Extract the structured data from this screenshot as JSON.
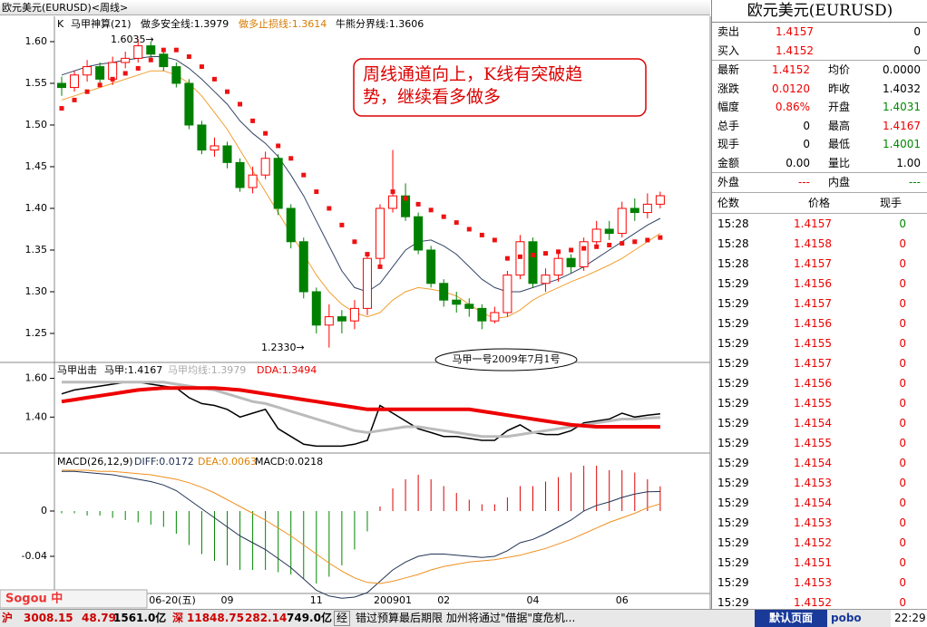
{
  "title_bar": "欧元美元(EURUSD)<周线>",
  "chart_data": [
    {
      "type": "candlestick",
      "label": "K",
      "indicator": "马甲神算(21)",
      "header": [
        "做多安全线:1.3979",
        "做多止损线:1.3614",
        "牛熊分界线:1.3606"
      ],
      "ylim": [
        1.2152,
        1.6304
      ],
      "yticks": [
        {
          "value": 1.25,
          "label": "1.25"
        },
        {
          "value": 1.3,
          "label": "1.30"
        },
        {
          "value": 1.35,
          "label": "1.35"
        },
        {
          "value": 1.4,
          "label": "1.40"
        },
        {
          "value": 1.45,
          "label": "1.45"
        },
        {
          "value": 1.5,
          "label": "1.50"
        },
        {
          "value": 1.55,
          "label": "1.55"
        },
        {
          "value": 1.6,
          "label": "1.60"
        }
      ],
      "open": [
        1.55,
        1.545,
        1.56,
        1.57,
        1.555,
        1.575,
        1.58,
        1.595,
        1.585,
        1.57,
        1.55,
        1.5,
        1.47,
        1.475,
        1.455,
        1.425,
        1.44,
        1.46,
        1.4,
        1.36,
        1.3,
        1.26,
        1.27,
        1.265,
        1.28,
        1.34,
        1.4,
        1.415,
        1.39,
        1.35,
        1.31,
        1.29,
        1.285,
        1.28,
        1.265,
        1.275,
        1.32,
        1.36,
        1.31,
        1.32,
        1.34,
        1.33,
        1.36,
        1.375,
        1.37,
        1.4,
        1.395,
        1.405
      ],
      "close": [
        1.545,
        1.56,
        1.57,
        1.555,
        1.575,
        1.58,
        1.595,
        1.585,
        1.57,
        1.55,
        1.5,
        1.47,
        1.475,
        1.455,
        1.425,
        1.44,
        1.46,
        1.4,
        1.36,
        1.3,
        1.26,
        1.27,
        1.265,
        1.28,
        1.34,
        1.4,
        1.415,
        1.39,
        1.35,
        1.31,
        1.29,
        1.285,
        1.28,
        1.265,
        1.275,
        1.32,
        1.36,
        1.31,
        1.32,
        1.34,
        1.33,
        1.36,
        1.375,
        1.37,
        1.4,
        1.395,
        1.405,
        1.4152
      ],
      "high": [
        1.558,
        1.565,
        1.578,
        1.575,
        1.582,
        1.588,
        1.6035,
        1.6,
        1.59,
        1.575,
        1.555,
        1.505,
        1.485,
        1.48,
        1.46,
        1.45,
        1.468,
        1.465,
        1.405,
        1.365,
        1.305,
        1.285,
        1.278,
        1.29,
        1.345,
        1.405,
        1.47,
        1.43,
        1.395,
        1.355,
        1.315,
        1.3,
        1.292,
        1.285,
        1.282,
        1.325,
        1.368,
        1.365,
        1.328,
        1.348,
        1.345,
        1.365,
        1.385,
        1.385,
        1.408,
        1.412,
        1.418,
        1.42
      ],
      "low": [
        1.535,
        1.54,
        1.552,
        1.548,
        1.548,
        1.568,
        1.575,
        1.578,
        1.565,
        1.545,
        1.495,
        1.465,
        1.462,
        1.448,
        1.42,
        1.418,
        1.435,
        1.392,
        1.352,
        1.292,
        1.25,
        1.233,
        1.25,
        1.255,
        1.272,
        1.33,
        1.395,
        1.385,
        1.345,
        1.305,
        1.282,
        1.275,
        1.27,
        1.255,
        1.262,
        1.27,
        1.315,
        1.305,
        1.3,
        1.312,
        1.322,
        1.325,
        1.352,
        1.362,
        1.365,
        1.385,
        1.388,
        1.4
      ],
      "up_color": "#ff0000",
      "down_color": "#008000",
      "lines": [
        {
          "color": "#334466",
          "values": [
            1.56,
            1.565,
            1.57,
            1.573,
            1.575,
            1.578,
            1.58,
            1.582,
            1.582,
            1.578,
            1.568,
            1.555,
            1.54,
            1.525,
            1.505,
            1.49,
            1.478,
            1.462,
            1.44,
            1.415,
            1.385,
            1.355,
            1.325,
            1.305,
            1.3,
            1.31,
            1.33,
            1.35,
            1.36,
            1.362,
            1.355,
            1.345,
            1.33,
            1.315,
            1.305,
            1.3,
            1.3,
            1.305,
            1.31,
            1.315,
            1.322,
            1.33,
            1.34,
            1.35,
            1.36,
            1.37,
            1.38,
            1.388
          ]
        },
        {
          "color": "#f0a030",
          "values": [
            1.53,
            1.535,
            1.54,
            1.545,
            1.55,
            1.555,
            1.56,
            1.565,
            1.565,
            1.56,
            1.55,
            1.535,
            1.515,
            1.495,
            1.47,
            1.445,
            1.42,
            1.395,
            1.37,
            1.345,
            1.32,
            1.3,
            1.285,
            1.275,
            1.27,
            1.275,
            1.29,
            1.3,
            1.305,
            1.303,
            1.3,
            1.295,
            1.285,
            1.275,
            1.268,
            1.27,
            1.278,
            1.29,
            1.298,
            1.305,
            1.312,
            1.318,
            1.325,
            1.332,
            1.34,
            1.35,
            1.36,
            1.37
          ]
        }
      ],
      "dots": {
        "color": "#ee1111",
        "values": [
          1.52,
          1.53,
          1.54,
          1.548,
          1.555,
          1.562,
          1.568,
          1.578,
          1.59,
          1.59,
          1.582,
          1.57,
          1.555,
          1.54,
          1.525,
          1.505,
          1.49,
          1.475,
          1.46,
          1.44,
          1.42,
          1.4,
          1.38,
          1.36,
          1.345,
          1.33,
          1.42,
          1.412,
          1.405,
          1.398,
          1.39,
          1.383,
          1.375,
          1.368,
          1.362,
          1.34,
          1.342,
          1.344,
          1.346,
          1.348,
          1.35,
          1.352,
          1.354,
          1.356,
          1.358,
          1.36,
          1.362,
          1.365
        ]
      },
      "annotations": {
        "high": "1.6035→",
        "low": "1.2330→",
        "comment": [
          "周线通道向上，K线有突破趋",
          "势，继续看多做多"
        ],
        "stamp": "马甲一号2009年7月1号"
      }
    },
    {
      "type": "line",
      "header": [
        "马甲出击",
        "马甲:1.4167",
        "马甲均线:1.3979",
        "DDA:1.3494"
      ],
      "ylim": [
        1.2145,
        1.668
      ],
      "yticks": [
        {
          "value": 1.4,
          "label": "1.40"
        },
        {
          "value": 1.6,
          "label": "1.60"
        }
      ],
      "series": [
        {
          "color": "#000000",
          "width": 1.5,
          "values": [
            1.52,
            1.54,
            1.55,
            1.56,
            1.57,
            1.58,
            1.58,
            1.57,
            1.56,
            1.55,
            1.5,
            1.47,
            1.46,
            1.44,
            1.4,
            1.42,
            1.44,
            1.34,
            1.3,
            1.26,
            1.25,
            1.25,
            1.25,
            1.26,
            1.28,
            1.46,
            1.42,
            1.38,
            1.34,
            1.32,
            1.3,
            1.3,
            1.29,
            1.28,
            1.28,
            1.33,
            1.36,
            1.32,
            1.31,
            1.31,
            1.33,
            1.37,
            1.38,
            1.39,
            1.42,
            1.4,
            1.41,
            1.4167
          ]
        },
        {
          "color": "#bbbbbb",
          "width": 3,
          "values": [
            1.58,
            1.58,
            1.58,
            1.58,
            1.58,
            1.58,
            1.58,
            1.58,
            1.58,
            1.57,
            1.56,
            1.55,
            1.54,
            1.52,
            1.5,
            1.48,
            1.47,
            1.45,
            1.43,
            1.41,
            1.39,
            1.37,
            1.35,
            1.33,
            1.32,
            1.33,
            1.34,
            1.35,
            1.35,
            1.34,
            1.33,
            1.32,
            1.31,
            1.3,
            1.3,
            1.3,
            1.31,
            1.32,
            1.33,
            1.34,
            1.35,
            1.36,
            1.37,
            1.38,
            1.39,
            1.39,
            1.395,
            1.3979
          ]
        },
        {
          "color": "#ee0000",
          "width": 4,
          "values": [
            1.48,
            1.49,
            1.5,
            1.51,
            1.52,
            1.53,
            1.54,
            1.545,
            1.55,
            1.55,
            1.55,
            1.55,
            1.55,
            1.545,
            1.54,
            1.53,
            1.52,
            1.51,
            1.5,
            1.49,
            1.48,
            1.47,
            1.46,
            1.45,
            1.44,
            1.44,
            1.44,
            1.44,
            1.44,
            1.44,
            1.44,
            1.44,
            1.44,
            1.43,
            1.42,
            1.41,
            1.4,
            1.39,
            1.38,
            1.37,
            1.36,
            1.355,
            1.35,
            1.35,
            1.35,
            1.35,
            1.35,
            1.3494
          ]
        }
      ]
    },
    {
      "type": "macd",
      "header": [
        "MACD(26,12,9)",
        "DIFF:0.0172",
        "DEA:0.0063",
        "MACD:0.0218"
      ],
      "ylim": [
        -0.0728,
        0.0488
      ],
      "yticks": [
        {
          "value": -0.04,
          "label": "-0.04"
        },
        0
      ],
      "categories": [
        "06-20(五)",
        null,
        null,
        null,
        null,
        null,
        null,
        null,
        null,
        null,
        null,
        null,
        null,
        "09",
        null,
        null,
        null,
        null,
        null,
        null,
        "11",
        null,
        null,
        null,
        null,
        null,
        "200901",
        null,
        null,
        null,
        "02",
        null,
        null,
        null,
        null,
        null,
        null,
        "04",
        null,
        null,
        null,
        null,
        null,
        null,
        "06",
        null,
        null,
        null
      ],
      "bar_colors": {
        "positive": "#dd0000",
        "negative": "#008800"
      },
      "bars": [
        -0.002,
        -0.002,
        -0.004,
        -0.004,
        -0.006,
        -0.008,
        -0.01,
        -0.012,
        -0.014,
        -0.02,
        -0.03,
        -0.038,
        -0.044,
        -0.048,
        -0.052,
        -0.052,
        -0.052,
        -0.054,
        -0.056,
        -0.06,
        -0.064,
        -0.058,
        -0.048,
        -0.034,
        -0.018,
        0.004,
        0.02,
        0.028,
        0.032,
        0.028,
        0.022,
        0.016,
        0.01,
        0.006,
        0.006,
        0.012,
        0.022,
        0.022,
        0.026,
        0.03,
        0.034,
        0.04,
        0.04,
        0.036,
        0.036,
        0.034,
        0.028,
        0.0218
      ],
      "series": [
        {
          "color": "#223355",
          "width": 1,
          "values": [
            0.035,
            0.035,
            0.034,
            0.033,
            0.032,
            0.03,
            0.028,
            0.026,
            0.023,
            0.018,
            0.01,
            0.002,
            -0.006,
            -0.014,
            -0.022,
            -0.028,
            -0.034,
            -0.042,
            -0.05,
            -0.06,
            -0.07,
            -0.075,
            -0.077,
            -0.076,
            -0.072,
            -0.062,
            -0.052,
            -0.045,
            -0.04,
            -0.038,
            -0.038,
            -0.039,
            -0.04,
            -0.041,
            -0.04,
            -0.035,
            -0.028,
            -0.025,
            -0.02,
            -0.014,
            -0.008,
            0.0,
            0.005,
            0.008,
            0.012,
            0.015,
            0.017,
            0.0172
          ]
        },
        {
          "color": "#f09020",
          "width": 1,
          "values": [
            0.036,
            0.036,
            0.036,
            0.035,
            0.035,
            0.034,
            0.033,
            0.032,
            0.03,
            0.028,
            0.025,
            0.021,
            0.016,
            0.01,
            0.004,
            -0.002,
            -0.008,
            -0.015,
            -0.022,
            -0.03,
            -0.038,
            -0.046,
            -0.053,
            -0.059,
            -0.063,
            -0.064,
            -0.062,
            -0.059,
            -0.056,
            -0.052,
            -0.049,
            -0.047,
            -0.045,
            -0.044,
            -0.043,
            -0.041,
            -0.039,
            -0.036,
            -0.033,
            -0.029,
            -0.025,
            -0.02,
            -0.015,
            -0.01,
            -0.006,
            -0.002,
            0.003,
            0.0063
          ]
        }
      ]
    }
  ],
  "ime": "Sogou 中",
  "quote": {
    "title": "欧元美元(EURUSD)",
    "rows": [
      {
        "cells": [
          "卖出",
          "1.4157",
          "0"
        ],
        "colors": [
          "#000",
          "#e00",
          "#000"
        ]
      },
      {
        "cells": [
          "买入",
          "1.4152",
          "0"
        ],
        "colors": [
          "#000",
          "#e00",
          "#000"
        ]
      },
      {
        "cells": [
          "最新",
          "1.4152",
          "均价",
          "0.0000"
        ],
        "colors": [
          "#000",
          "#e00",
          "#000",
          "#000"
        ]
      },
      {
        "cells": [
          "涨跌",
          "0.0120",
          "昨收",
          "1.4032"
        ],
        "colors": [
          "#000",
          "#e00",
          "#000",
          "#000"
        ]
      },
      {
        "cells": [
          "幅度",
          "0.86%",
          "开盘",
          "1.4031"
        ],
        "colors": [
          "#000",
          "#e00",
          "#000",
          "#080"
        ]
      },
      {
        "cells": [
          "总手",
          "0",
          "最高",
          "1.4167"
        ],
        "colors": [
          "#000",
          "#000",
          "#000",
          "#e00"
        ]
      },
      {
        "cells": [
          "现手",
          "0",
          "最低",
          "1.4001"
        ],
        "colors": [
          "#000",
          "#000",
          "#000",
          "#080"
        ]
      },
      {
        "cells": [
          "金额",
          "0.00",
          "量比",
          "1.00"
        ],
        "colors": [
          "#000",
          "#000",
          "#000",
          "#000"
        ]
      },
      {
        "cells": [
          "外盘",
          "---",
          "内盘",
          "---"
        ],
        "colors": [
          "#000",
          "#e00",
          "#000",
          "#080"
        ]
      }
    ],
    "trade_header": [
      "伦数",
      "价格",
      "现手"
    ],
    "trades": [
      [
        "15:28",
        "1.4157",
        "0"
      ],
      [
        "15:28",
        "1.4158",
        "0"
      ],
      [
        "15:28",
        "1.4157",
        "0"
      ],
      [
        "15:29",
        "1.4156",
        "0"
      ],
      [
        "15:29",
        "1.4157",
        "0"
      ],
      [
        "15:29",
        "1.4156",
        "0"
      ],
      [
        "15:29",
        "1.4155",
        "0"
      ],
      [
        "15:29",
        "1.4157",
        "0"
      ],
      [
        "15:29",
        "1.4156",
        "0"
      ],
      [
        "15:29",
        "1.4155",
        "0"
      ],
      [
        "15:29",
        "1.4154",
        "0"
      ],
      [
        "15:29",
        "1.4155",
        "0"
      ],
      [
        "15:29",
        "1.4154",
        "0"
      ],
      [
        "15:29",
        "1.4153",
        "0"
      ],
      [
        "15:29",
        "1.4154",
        "0"
      ],
      [
        "15:29",
        "1.4153",
        "0"
      ],
      [
        "15:29",
        "1.4152",
        "0"
      ],
      [
        "15:29",
        "1.4151",
        "0"
      ],
      [
        "15:29",
        "1.4153",
        "0"
      ],
      [
        "15:29",
        "1.4152",
        "0"
      ]
    ]
  },
  "status": {
    "sh": "沪",
    "sh_index": "3008.15",
    "sh_change": "48.79",
    "sh_amount": "1561.0亿",
    "sz": "深",
    "sz_index": "11848.75",
    "sz_change": "282.14",
    "sz_amount": "749.0亿",
    "news_tag": "经",
    "news": "错过预算最后期限 加州将通过\"借据\"度危机...",
    "page": "默认页面",
    "brand": "pobo",
    "clock": "22:29"
  }
}
